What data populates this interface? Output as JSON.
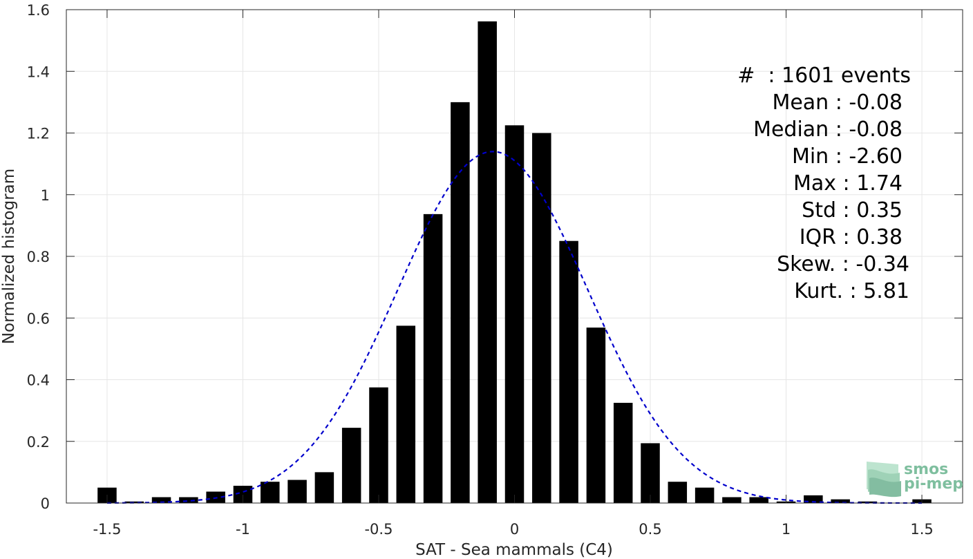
{
  "chart_data": {
    "type": "bar",
    "xlabel": "SAT - Sea mammals (C4)",
    "ylabel": "Normalized histogram",
    "xlim": [
      -1.65,
      1.65
    ],
    "ylim": [
      0,
      1.6
    ],
    "xticks": [
      -1.5,
      -1,
      -0.5,
      0,
      0.5,
      1,
      1.5
    ],
    "xtick_labels": [
      "-1.5",
      "-1",
      "-0.5",
      "0",
      "0.5",
      "1",
      "1.5"
    ],
    "yticks": [
      0,
      0.2,
      0.4,
      0.6,
      0.8,
      1,
      1.2,
      1.4,
      1.6
    ],
    "ytick_labels": [
      "0",
      "0.2",
      "0.4",
      "0.6",
      "0.8",
      "1",
      "1.2",
      "1.4",
      "1.6"
    ],
    "grid": true,
    "bin_width": 0.1,
    "bar_fraction": 0.7,
    "bar_color": "#000000",
    "bins": [
      {
        "x": -1.5,
        "y": 0.05
      },
      {
        "x": -1.4,
        "y": 0.005
      },
      {
        "x": -1.3,
        "y": 0.019
      },
      {
        "x": -1.2,
        "y": 0.019
      },
      {
        "x": -1.1,
        "y": 0.037
      },
      {
        "x": -1.0,
        "y": 0.056
      },
      {
        "x": -0.9,
        "y": 0.069
      },
      {
        "x": -0.8,
        "y": 0.075
      },
      {
        "x": -0.7,
        "y": 0.1
      },
      {
        "x": -0.6,
        "y": 0.244
      },
      {
        "x": -0.5,
        "y": 0.375
      },
      {
        "x": -0.4,
        "y": 0.575
      },
      {
        "x": -0.3,
        "y": 0.937
      },
      {
        "x": -0.2,
        "y": 1.3
      },
      {
        "x": -0.1,
        "y": 1.562
      },
      {
        "x": 0.0,
        "y": 1.225
      },
      {
        "x": 0.1,
        "y": 1.2
      },
      {
        "x": 0.2,
        "y": 0.85
      },
      {
        "x": 0.3,
        "y": 0.569
      },
      {
        "x": 0.4,
        "y": 0.325
      },
      {
        "x": 0.5,
        "y": 0.194
      },
      {
        "x": 0.6,
        "y": 0.069
      },
      {
        "x": 0.7,
        "y": 0.05
      },
      {
        "x": 0.8,
        "y": 0.019
      },
      {
        "x": 0.9,
        "y": 0.019
      },
      {
        "x": 1.0,
        "y": 0.005
      },
      {
        "x": 1.1,
        "y": 0.025
      },
      {
        "x": 1.2,
        "y": 0.012
      },
      {
        "x": 1.3,
        "y": 0.005
      },
      {
        "x": 1.4,
        "y": 0.0
      },
      {
        "x": 1.5,
        "y": 0.012
      }
    ],
    "fit_curve": {
      "type": "gaussian",
      "mean": -0.08,
      "std": 0.35,
      "x_range": [
        -1.5,
        1.5
      ],
      "color": "#0000cc",
      "style": "dashed"
    },
    "stats": {
      "events": "#  : 1601 events",
      "mean": "Mean : -0.08",
      "median": "Median : -0.08",
      "min": "Min : -2.60",
      "max": "Max : 1.74",
      "std": "Std : 0.35",
      "iqr": "IQR : 0.38",
      "skew": "Skew. : -0.34",
      "kurt": "Kurt. : 5.81"
    }
  },
  "logo": {
    "line1": "smos",
    "line2": "pi-mep",
    "color": "#7fbf9f"
  }
}
